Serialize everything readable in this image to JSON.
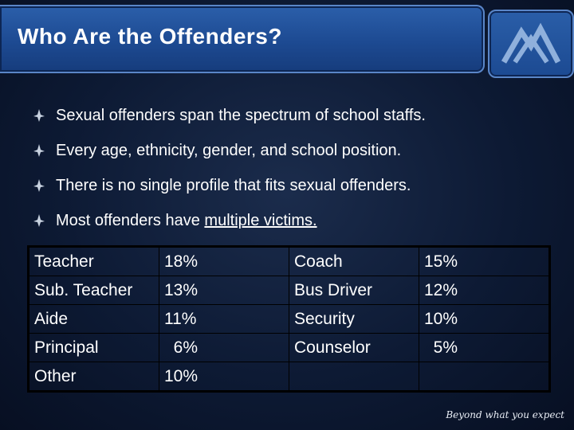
{
  "header": {
    "title": "Who Are the Offenders?"
  },
  "logo": {
    "icon": "mountain-logo-icon"
  },
  "bullets": [
    {
      "text": "Sexual offenders span the spectrum of school staffs."
    },
    {
      "text": "Every age, ethnicity, gender, and school position."
    },
    {
      "text": "There is no single profile that fits sexual offenders."
    },
    {
      "text_before": "Most offenders have ",
      "text_underlined": "multiple victims."
    }
  ],
  "table": {
    "rows": [
      {
        "role1": "Teacher",
        "pct1": "18%",
        "role2": "Coach",
        "pct2": "15%"
      },
      {
        "role1": "Sub. Teacher",
        "pct1": "13%",
        "role2": "Bus Driver",
        "pct2": "12%"
      },
      {
        "role1": "Aide",
        "pct1": "11%",
        "role2": "Security",
        "pct2": "10%"
      },
      {
        "role1": "Principal",
        "pct1": "  6%",
        "role2": "Counselor",
        "pct2": "  5%"
      },
      {
        "role1": "Other",
        "pct1": "10%",
        "role2": "",
        "pct2": ""
      }
    ]
  },
  "footer": {
    "tagline": "Beyond what you expect"
  },
  "colors": {
    "title_bar": "#1d4a92",
    "background": "#0d1a34",
    "text": "#ffffff"
  }
}
